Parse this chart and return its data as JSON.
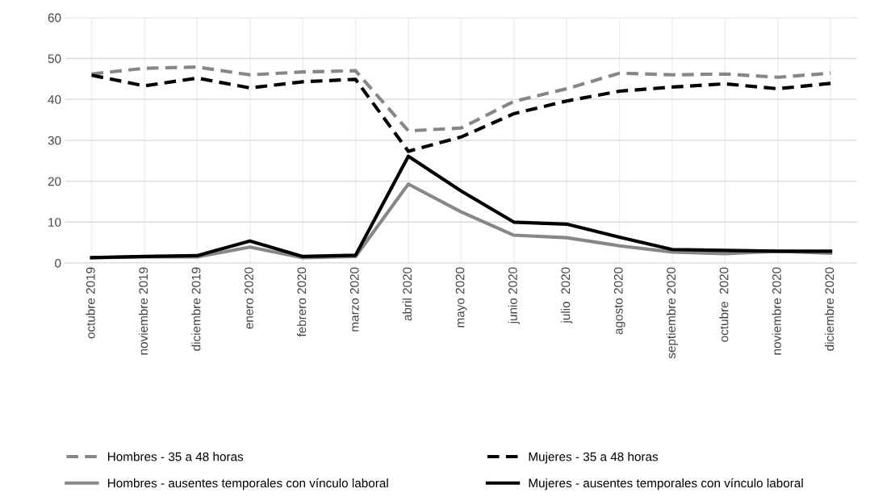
{
  "chart_data": {
    "type": "line",
    "categories": [
      "octubre 2019",
      "noviembre 2019",
      "diciembre 2019",
      "enero 2020",
      "febrero 2020",
      "marzo 2020",
      "abril 2020",
      "mayo 2020",
      "junio 2020",
      "julio  2020",
      "agosto 2020",
      "septiembre 2020",
      "octubre  2020",
      "noviembre 2020",
      "diciembre 2020"
    ],
    "series": [
      {
        "name": "Hombres - 35 a 48 horas",
        "color": "#878787",
        "line_style": "dashed",
        "values": [
          46.2,
          47.6,
          47.9,
          46.0,
          46.7,
          47.0,
          32.3,
          33.0,
          39.5,
          42.6,
          46.4,
          46.0,
          46.2,
          45.4,
          46.4
        ]
      },
      {
        "name": "Mujeres - 35 a 48 horas",
        "color": "#000000",
        "line_style": "dashed",
        "values": [
          45.9,
          43.3,
          45.2,
          42.8,
          44.3,
          44.9,
          27.3,
          30.8,
          36.5,
          39.6,
          42.0,
          43.0,
          43.8,
          42.6,
          43.9
        ]
      },
      {
        "name": "Hombres - ausentes temporales con vínculo laboral",
        "color": "#878787",
        "line_style": "solid",
        "values": [
          1.3,
          1.5,
          1.5,
          3.9,
          1.3,
          1.6,
          19.3,
          12.5,
          6.8,
          6.2,
          4.2,
          2.7,
          2.3,
          2.9,
          2.4
        ]
      },
      {
        "name": "Mujeres - ausentes temporales con vínculo laboral",
        "color": "#000000",
        "line_style": "solid",
        "values": [
          1.3,
          1.6,
          1.8,
          5.4,
          1.6,
          1.9,
          26.1,
          17.6,
          10.0,
          9.5,
          6.3,
          3.3,
          3.1,
          2.9,
          2.9
        ]
      }
    ],
    "ylim": [
      0,
      60
    ],
    "yticks": [
      0,
      10,
      20,
      30,
      40,
      50,
      60
    ],
    "grid": true,
    "legend": "bottom",
    "marker": "none"
  }
}
